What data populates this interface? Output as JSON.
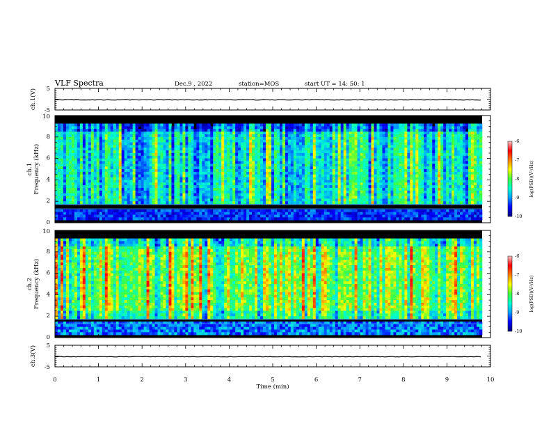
{
  "header": {
    "title": "VLF Spectra",
    "date": "Dec.9 , 2022",
    "station": "station=MOS",
    "start": "start UT = 14: 50: 1"
  },
  "chart_data": {
    "type": "heatmap",
    "xlabel": "Time (min)",
    "xlim": [
      0,
      10
    ],
    "x_ticks": [
      "0",
      "1",
      "2",
      "3",
      "4",
      "5",
      "6",
      "7",
      "8",
      "9",
      "10"
    ],
    "panels": [
      {
        "kind": "waveform",
        "ylabel": "ch.1(V)",
        "ylim": [
          -5,
          5
        ],
        "y_ticks": [
          "5",
          "-5"
        ]
      },
      {
        "kind": "spectrogram",
        "ylabel_top": "ch.1",
        "ylabel": "Frequency (kHz)",
        "ylim": [
          0,
          10
        ],
        "y_ticks": [
          "0",
          "2",
          "4",
          "6",
          "8",
          "10"
        ]
      },
      {
        "kind": "spectrogram",
        "ylabel_top": "ch.2",
        "ylabel": "Frequency (kHz)",
        "ylim": [
          0,
          10
        ],
        "y_ticks": [
          "0",
          "2",
          "4",
          "6",
          "8",
          "10"
        ]
      },
      {
        "kind": "waveform",
        "ylabel": "ch.3(V)",
        "ylim": [
          -5,
          5
        ],
        "y_ticks": [
          "5",
          "-5"
        ]
      }
    ],
    "colorbar": {
      "label": "log(PSD)(V²/Hz)",
      "range": [
        -10,
        -6
      ],
      "ticks": [
        "-6",
        "-7",
        "-8",
        "-9",
        "-10"
      ],
      "colors": [
        "#00007f",
        "#0000ff",
        "#00a0ff",
        "#00ffd0",
        "#40ff40",
        "#ffff00",
        "#ff8000",
        "#ff0000",
        "#ffc8c8"
      ]
    }
  }
}
